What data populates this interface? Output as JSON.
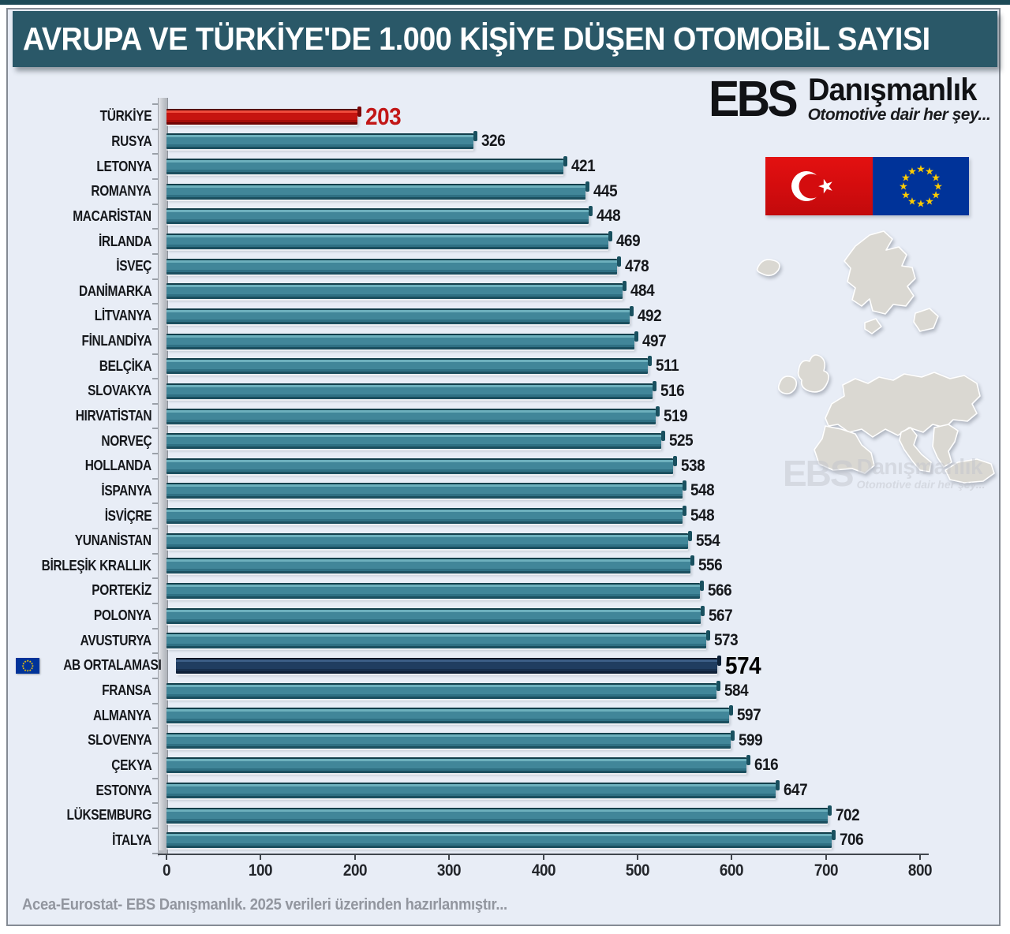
{
  "header": {
    "title": "AVRUPA VE TÜRKİYE'DE 1.000 KİŞİYE DÜŞEN OTOMOBİL SAYISI"
  },
  "brand": {
    "name": "EBS",
    "word": "Danışmanlık",
    "tagline": "Otomotive dair her şey..."
  },
  "flags": [
    "turkey-flag",
    "eu-flag"
  ],
  "watermark": {
    "name": "EBS",
    "word": "Danışmanlık",
    "tagline": "Otomotive dair her şey..."
  },
  "footer": {
    "source_note": "Acea-Eurostat- EBS Danışmanlık. 2025 verileri üzerinden hazırlanmıştır..."
  },
  "chart_data": {
    "type": "bar",
    "orientation": "horizontal",
    "title": "AVRUPA VE TÜRKİYE'DE 1.000 KİŞİYE DÜŞEN OTOMOBİL SAYISI",
    "xlabel": "",
    "ylabel": "",
    "xlim": [
      0,
      800
    ],
    "x_ticks": [
      0,
      100,
      200,
      300,
      400,
      500,
      600,
      700,
      800
    ],
    "grid": false,
    "legend": "none",
    "colors": {
      "default_bar": "#418699",
      "turkey_bar": "#C61410",
      "eu_average_bar": "#203D60",
      "turkey_value_text": "#C21717",
      "title_background": "#2A5868"
    },
    "rows": [
      {
        "label": "TÜRKİYE",
        "value": 203,
        "color": "turkey"
      },
      {
        "label": "RUSYA",
        "value": 326,
        "color": "default"
      },
      {
        "label": "LETONYA",
        "value": 421,
        "color": "default"
      },
      {
        "label": "ROMANYA",
        "value": 445,
        "color": "default"
      },
      {
        "label": "MACARİSTAN",
        "value": 448,
        "color": "default"
      },
      {
        "label": "İRLANDA",
        "value": 469,
        "color": "default"
      },
      {
        "label": "İSVEÇ",
        "value": 478,
        "color": "default"
      },
      {
        "label": "DANİMARKA",
        "value": 484,
        "color": "default"
      },
      {
        "label": "LİTVANYA",
        "value": 492,
        "color": "default"
      },
      {
        "label": "FİNLANDİYA",
        "value": 497,
        "color": "default"
      },
      {
        "label": "BELÇİKA",
        "value": 511,
        "color": "default"
      },
      {
        "label": "SLOVAKYA",
        "value": 516,
        "color": "default"
      },
      {
        "label": "HIRVATİSTAN",
        "value": 519,
        "color": "default"
      },
      {
        "label": "NORVEÇ",
        "value": 525,
        "color": "default"
      },
      {
        "label": "HOLLANDA",
        "value": 538,
        "color": "default"
      },
      {
        "label": "İSPANYA",
        "value": 548,
        "color": "default"
      },
      {
        "label": "İSVİÇRE",
        "value": 548,
        "color": "default"
      },
      {
        "label": "YUNANİSTAN",
        "value": 554,
        "color": "default"
      },
      {
        "label": "BİRLEŞİK KRALLIK",
        "value": 556,
        "color": "default"
      },
      {
        "label": "PORTEKİZ",
        "value": 566,
        "color": "default"
      },
      {
        "label": "POLONYA",
        "value": 567,
        "color": "default"
      },
      {
        "label": "AVUSTURYA",
        "value": 573,
        "color": "default"
      },
      {
        "label": "AB ORTALAMASI",
        "value": 574,
        "color": "eu_average",
        "icon": "eu-flag"
      },
      {
        "label": "FRANSA",
        "value": 584,
        "color": "default"
      },
      {
        "label": "ALMANYA",
        "value": 597,
        "color": "default"
      },
      {
        "label": "SLOVENYA",
        "value": 599,
        "color": "default"
      },
      {
        "label": "ÇEKYA",
        "value": 616,
        "color": "default"
      },
      {
        "label": "ESTONYA",
        "value": 647,
        "color": "default"
      },
      {
        "label": "LÜKSEMBURG",
        "value": 702,
        "color": "default"
      },
      {
        "label": "İTALYA",
        "value": 706,
        "color": "default"
      }
    ]
  }
}
